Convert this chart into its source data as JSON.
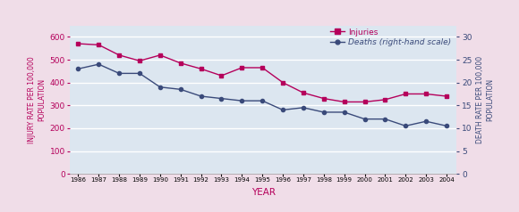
{
  "years": [
    1986,
    1987,
    1988,
    1989,
    1990,
    1991,
    1992,
    1993,
    1994,
    1995,
    1996,
    1997,
    1998,
    1999,
    2000,
    2001,
    2002,
    2003,
    2004
  ],
  "injuries": [
    570,
    565,
    520,
    495,
    520,
    485,
    460,
    430,
    465,
    465,
    400,
    355,
    330,
    315,
    315,
    325,
    350,
    350,
    340
  ],
  "deaths": [
    23,
    24,
    22,
    22,
    19,
    18.5,
    17,
    16.5,
    16,
    16,
    14,
    14.5,
    13.5,
    13.5,
    12,
    12,
    10.5,
    11.5,
    10.5
  ],
  "injury_ylim": [
    0,
    650
  ],
  "injury_yticks": [
    0,
    100,
    200,
    300,
    400,
    500,
    600
  ],
  "death_ylim": [
    0,
    32.5
  ],
  "death_yticks": [
    0,
    5,
    10,
    15,
    20,
    25,
    30
  ],
  "xlabel": "YEAR",
  "ylabel_left": "INJURY RATE PER 100,000\nPOPULATION",
  "ylabel_right": "DEATH RATE PER 100,000\nPOPULATION",
  "injuries_label": "Injuries",
  "deaths_label_normal": "Deaths ",
  "deaths_label_italic": "(right-hand scale)",
  "injuries_color": "#b5005b",
  "deaths_color": "#3a4a7a",
  "bg_color": "#dce6f0",
  "outer_bg": "#f0dde8",
  "grid_color": "#ffffff",
  "topbar_color": "#5b6fa6",
  "xlabel_color": "#b5005b",
  "tick_color_left": "#b5005b",
  "tick_color_right": "#3a4a7a"
}
